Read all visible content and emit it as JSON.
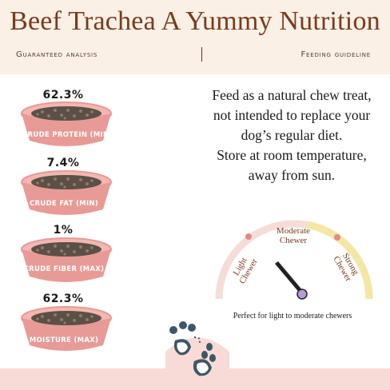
{
  "header": {
    "title": "Beef Trachea A Yummy Nutrition",
    "left_label": "Guaranteed analysis",
    "right_label": "Feeding guideline"
  },
  "analysis": [
    {
      "value": "62.3%",
      "label": "CRUDE PROTEIN (MIN)"
    },
    {
      "value": "7.4%",
      "label": "CRUDE FAT (MIN)"
    },
    {
      "value": "1%",
      "label": "CRUDE FIBER (MAX)"
    },
    {
      "value": "62.3%",
      "label": "MOISTURE (MAX)"
    }
  ],
  "feeding": {
    "lines": [
      "Feed as a natural chew treat,",
      "not intended to replace your",
      "dog’s regular diet.",
      "Store at room temperature,",
      "away from sun."
    ]
  },
  "gauge": {
    "label_left": [
      "Light",
      "Chewer"
    ],
    "label_middle": [
      "Moderate",
      "Chewer"
    ],
    "label_right": [
      "Strong",
      "Chewer"
    ],
    "caption": "Perfect for light to moderate chewers"
  },
  "colors": {
    "bowl": "#e89a97",
    "bowl_rim": "#f3b7b2",
    "food": "#6b5e52",
    "title": "#7a3b1c",
    "gauge_needle": "#222222",
    "gauge_hub": "#b69cd6",
    "gauge_dot": "#e08c85",
    "footer": "#f8dbd6",
    "paw": "#3f5667"
  }
}
